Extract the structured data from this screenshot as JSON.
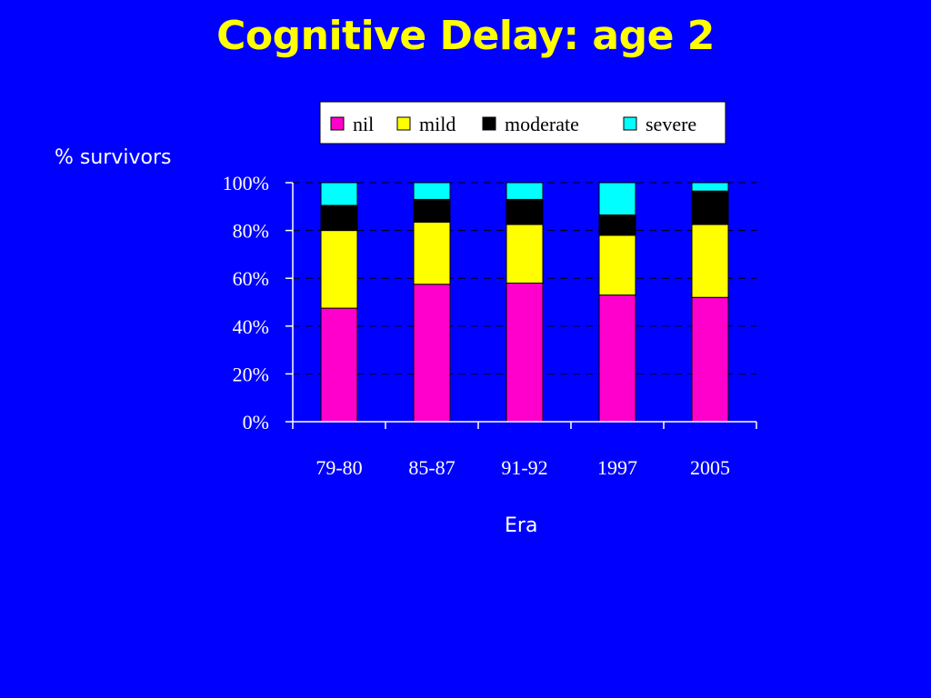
{
  "chart_data": {
    "type": "bar",
    "stacked": true,
    "title": "Cognitive Delay: age 2",
    "xlabel": "Era",
    "ylabel": "% survivors",
    "categories": [
      "79-80",
      "85-87",
      "91-92",
      "1997",
      "2005"
    ],
    "series": [
      {
        "name": "nil",
        "color": "#FF00CC",
        "values": [
          47.5,
          57.5,
          58,
          53,
          52
        ]
      },
      {
        "name": "mild",
        "color": "#FFFF00",
        "values": [
          32.5,
          26,
          24.5,
          25,
          30.5
        ]
      },
      {
        "name": "moderate",
        "color": "#000000",
        "values": [
          10.5,
          9.5,
          10.5,
          8.5,
          14
        ]
      },
      {
        "name": "severe",
        "color": "#00FFFF",
        "values": [
          9.5,
          7,
          7,
          13.5,
          3.5
        ]
      }
    ],
    "ylim": [
      0,
      100
    ],
    "yticks": [
      "0%",
      "20%",
      "40%",
      "60%",
      "80%",
      "100%"
    ],
    "grid": true,
    "legend_position": "top"
  },
  "colors": {
    "background": "#0000FF",
    "title": "#FFFF00",
    "text": "#FFFFFF"
  }
}
